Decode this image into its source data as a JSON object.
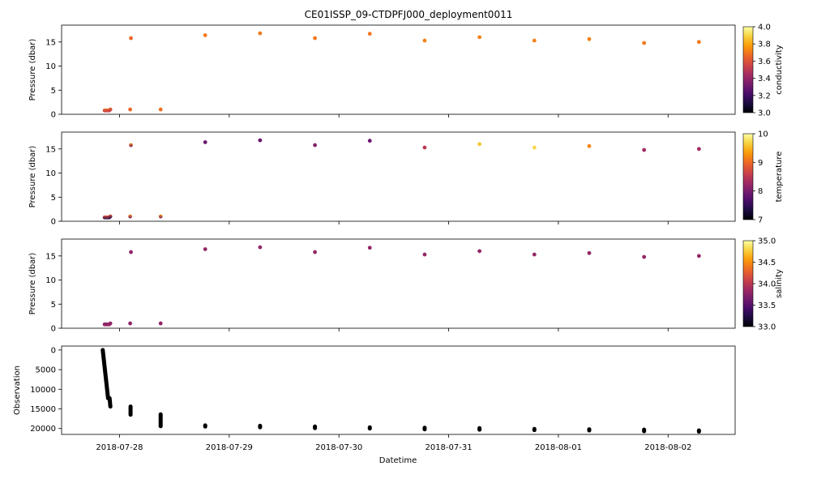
{
  "chart_data": {
    "type": "scatter",
    "title": "CE01ISSP_09-CTDPFJ000_deployment0011",
    "xlabel": "Datetime",
    "x_ticks": [
      "2018-07-28",
      "2018-07-29",
      "2018-07-30",
      "2018-07-31",
      "2018-08-01",
      "2018-08-02"
    ],
    "xlim": [
      "2018-07-27T11:20",
      "2018-08-02T14:40"
    ],
    "colormap": {
      "name": "inferno",
      "colors": [
        "#000004",
        "#1b0c41",
        "#4a0c6b",
        "#781c6d",
        "#a52c60",
        "#cf4446",
        "#ed6925",
        "#fb9b06",
        "#f7d13d",
        "#fcffa4"
      ]
    },
    "profiles": [
      {
        "time": "2018-07-27T20:45",
        "p_min": 0.8,
        "p_max": 16.8
      },
      {
        "time": "2018-07-27T21:05",
        "p_min": 0.8,
        "p_max": 16.9
      },
      {
        "time": "2018-07-27T21:25",
        "p_min": 0.8,
        "p_max": 17.0
      },
      {
        "time": "2018-07-27T21:45",
        "p_min": 0.8,
        "p_max": 16.9
      },
      {
        "time": "2018-07-27T22:00",
        "p_min": 1.0,
        "p_max": 17.2
      },
      {
        "time": "2018-07-28T02:20",
        "p_min": 1.0,
        "p_max": 15.2
      },
      {
        "time": "2018-07-28T02:30",
        "p_min": 15.8,
        "p_max": 16.6
      },
      {
        "time": "2018-07-28T09:00",
        "p_min": 1.0,
        "p_max": 17.9
      },
      {
        "time": "2018-07-28T18:45",
        "p_min": 16.4,
        "p_max": 16.9
      },
      {
        "time": "2018-07-29T06:45",
        "p_min": 16.8,
        "p_max": 17.6
      },
      {
        "time": "2018-07-29T18:45",
        "p_min": 15.8,
        "p_max": 16.5
      },
      {
        "time": "2018-07-30T06:45",
        "p_min": 16.7,
        "p_max": 17.2
      },
      {
        "time": "2018-07-30T18:45",
        "p_min": 15.3,
        "p_max": 16.0
      },
      {
        "time": "2018-07-31T06:45",
        "p_min": 16.0,
        "p_max": 17.0
      },
      {
        "time": "2018-07-31T18:45",
        "p_min": 15.3,
        "p_max": 15.9
      },
      {
        "time": "2018-08-01T06:45",
        "p_min": 15.6,
        "p_max": 16.2
      },
      {
        "time": "2018-08-01T18:45",
        "p_min": 14.8,
        "p_max": 15.4
      },
      {
        "time": "2018-08-02T06:45",
        "p_min": 15.0,
        "p_max": 15.8
      }
    ],
    "panels": [
      {
        "variable": "conductivity",
        "ylabel": "Pressure (dbar)",
        "ylim": [
          18.5,
          0
        ],
        "y_ticks": [
          0,
          5,
          10,
          15
        ],
        "colorbar": {
          "label": "conductivity",
          "range": [
            3.0,
            4.0
          ],
          "ticks": [
            "3.0",
            "3.2",
            "3.4",
            "3.6",
            "3.8",
            "4.0"
          ]
        },
        "values": [
          3.66,
          3.66,
          3.66,
          3.66,
          3.66,
          3.68,
          3.68,
          3.7,
          3.7,
          3.7,
          3.7,
          3.7,
          3.72,
          3.72,
          3.72,
          3.72,
          3.7,
          3.7
        ],
        "deep_values": [
          3.52,
          3.52,
          3.52,
          3.52,
          3.52,
          3.64,
          3.64,
          3.66,
          3.7,
          3.7,
          3.7,
          3.7,
          3.72,
          3.72,
          3.72,
          3.72,
          3.7,
          3.7
        ]
      },
      {
        "variable": "temperature",
        "ylabel": "Pressure (dbar)",
        "ylim": [
          18.5,
          0
        ],
        "y_ticks": [
          0,
          5,
          10,
          15
        ],
        "colorbar": {
          "label": "temperature",
          "range": [
            7,
            10
          ],
          "ticks": [
            "7",
            "8",
            "9",
            "10"
          ]
        },
        "values": [
          8.8,
          8.8,
          8.8,
          8.8,
          8.8,
          9.2,
          9.2,
          9.3,
          7.9,
          7.9,
          8.1,
          7.9,
          8.5,
          9.6,
          9.7,
          9.2,
          8.3,
          8.3
        ],
        "deep_values": [
          7.4,
          7.4,
          7.4,
          7.4,
          7.5,
          8.0,
          8.0,
          8.0,
          7.9,
          7.9,
          8.1,
          7.9,
          8.5,
          9.6,
          9.7,
          9.2,
          8.3,
          8.3
        ]
      },
      {
        "variable": "salinity",
        "ylabel": "Pressure (dbar)",
        "ylim": [
          18.5,
          0
        ],
        "y_ticks": [
          0,
          5,
          10,
          15
        ],
        "colorbar": {
          "label": "salinity",
          "range": [
            33.0,
            35.0
          ],
          "ticks": [
            "33.0",
            "33.5",
            "34.0",
            "34.5",
            "35.0"
          ]
        },
        "values": [
          33.75,
          33.75,
          33.75,
          33.75,
          33.75,
          33.75,
          33.75,
          33.75,
          33.8,
          33.8,
          33.8,
          33.8,
          33.8,
          33.8,
          33.8,
          33.8,
          33.8,
          33.8
        ],
        "deep_values": [
          33.85,
          33.85,
          33.85,
          33.85,
          33.85,
          33.8,
          33.8,
          33.8,
          33.8,
          33.8,
          33.8,
          33.8,
          33.8,
          33.8,
          33.8,
          33.8,
          33.8,
          33.8
        ]
      },
      {
        "variable": "observation",
        "ylabel": "Observation",
        "ylim": [
          -1000,
          21500
        ],
        "y_ticks": [
          0,
          5000,
          10000,
          15000,
          20000
        ],
        "color": "#000000",
        "groups": [
          {
            "time_start": "2018-07-27T20:20",
            "time_end": "2018-07-27T21:30",
            "obs_start": 0,
            "obs_end": 12300
          },
          {
            "time_start": "2018-07-27T21:50",
            "time_end": "2018-07-27T22:00",
            "obs_start": 12300,
            "obs_end": 14400
          },
          {
            "time_start": "2018-07-28T02:25",
            "time_end": "2018-07-28T02:25",
            "obs_start": 14400,
            "obs_end": 16500
          },
          {
            "time_start": "2018-07-28T09:00",
            "time_end": "2018-07-28T09:00",
            "obs_start": 16400,
            "obs_end": 19400
          },
          {
            "time_start": "2018-07-28T18:45",
            "time_end": "2018-07-28T18:45",
            "obs_start": 19200,
            "obs_end": 19500
          },
          {
            "time_start": "2018-07-29T06:45",
            "time_end": "2018-07-29T06:45",
            "obs_start": 19300,
            "obs_end": 19700
          },
          {
            "time_start": "2018-07-29T18:45",
            "time_end": "2018-07-29T18:45",
            "obs_start": 19500,
            "obs_end": 19900
          },
          {
            "time_start": "2018-07-30T06:45",
            "time_end": "2018-07-30T06:45",
            "obs_start": 19700,
            "obs_end": 20000
          },
          {
            "time_start": "2018-07-30T18:45",
            "time_end": "2018-07-30T18:45",
            "obs_start": 19800,
            "obs_end": 20200
          },
          {
            "time_start": "2018-07-31T06:45",
            "time_end": "2018-07-31T06:45",
            "obs_start": 19900,
            "obs_end": 20300
          },
          {
            "time_start": "2018-07-31T18:45",
            "time_end": "2018-07-31T18:45",
            "obs_start": 20100,
            "obs_end": 20400
          },
          {
            "time_start": "2018-08-01T06:45",
            "time_end": "2018-08-01T06:45",
            "obs_start": 20200,
            "obs_end": 20500
          },
          {
            "time_start": "2018-08-01T18:45",
            "time_end": "2018-08-01T18:45",
            "obs_start": 20300,
            "obs_end": 20700
          },
          {
            "time_start": "2018-08-02T06:45",
            "time_end": "2018-08-02T06:45",
            "obs_start": 20500,
            "obs_end": 20800
          }
        ]
      }
    ]
  }
}
